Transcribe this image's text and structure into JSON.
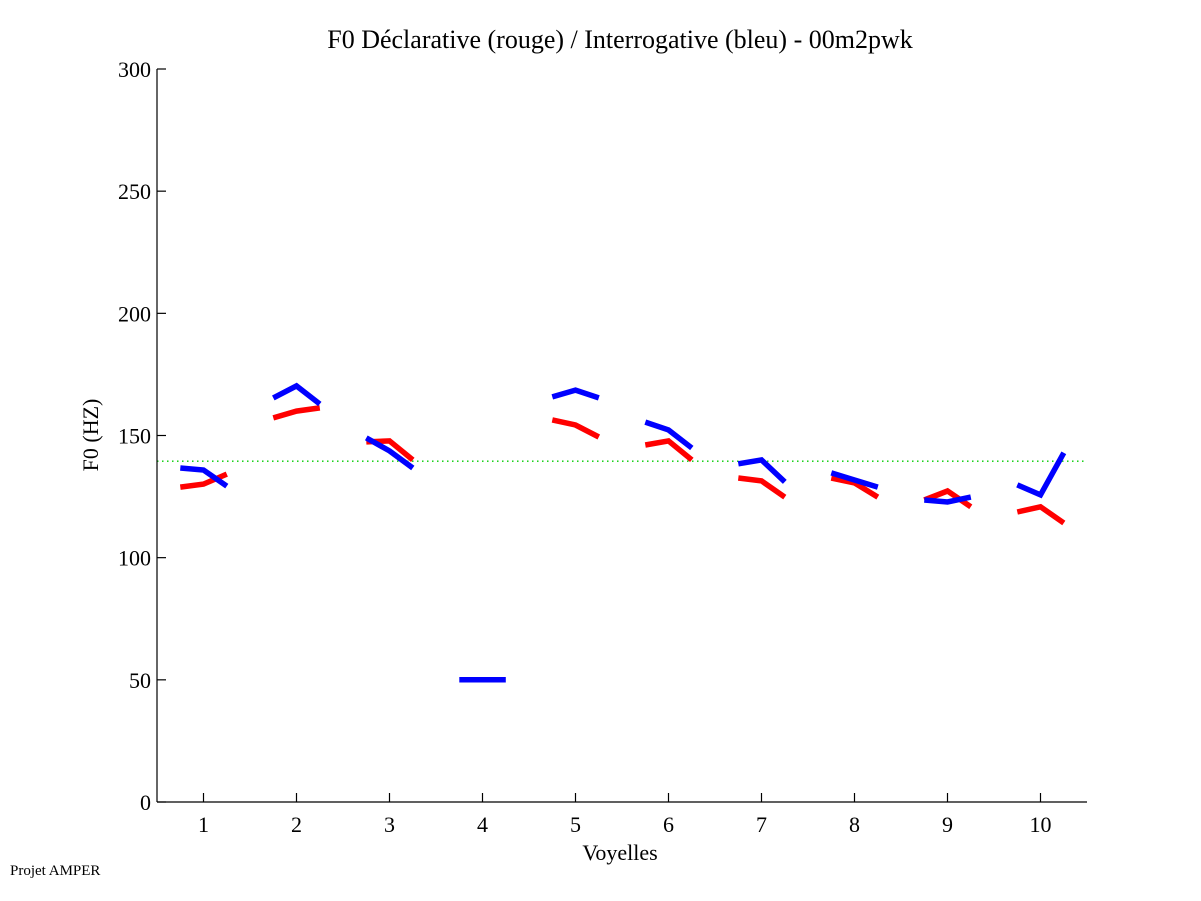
{
  "chart_data": {
    "type": "line",
    "title": "F0 Déclarative (rouge) / Interrogative (bleu) - 00m2pwk",
    "xlabel": "Voyelles",
    "ylabel": "F0 (HZ)",
    "xlim": [
      0.5,
      10.5
    ],
    "ylim": [
      0,
      300
    ],
    "xticks": [
      1,
      2,
      3,
      4,
      5,
      6,
      7,
      8,
      9,
      10
    ],
    "xtick_labels": [
      "1",
      "2",
      "3",
      "4",
      "5",
      "6",
      "7",
      "8",
      "9",
      "10"
    ],
    "yticks": [
      0,
      50,
      100,
      150,
      200,
      250,
      300
    ],
    "ytick_labels": [
      "0",
      "50",
      "100",
      "150",
      "200",
      "250",
      "300"
    ],
    "grid": false,
    "segment_offsets": [
      -0.25,
      0,
      0.25
    ],
    "reference_line": {
      "value": 139.5,
      "color": "#00cc00",
      "style": "dotted"
    },
    "series": [
      {
        "name": "Déclarative (rouge)",
        "color": "#ff0000",
        "segments": [
          {
            "vowel": 1,
            "values": [
              128.9,
              130.1,
              134.2
            ]
          },
          {
            "vowel": 2,
            "values": [
              157.2,
              160.0,
              161.3
            ]
          },
          {
            "vowel": 3,
            "values": [
              147.4,
              147.8,
              140.0
            ]
          },
          {
            "vowel": 5,
            "values": [
              156.4,
              154.3,
              149.4
            ]
          },
          {
            "vowel": 6,
            "values": [
              146.1,
              147.8,
              140.0
            ]
          },
          {
            "vowel": 7,
            "values": [
              132.6,
              131.4,
              124.8
            ]
          },
          {
            "vowel": 8,
            "values": [
              132.6,
              130.6,
              124.8
            ]
          },
          {
            "vowel": 9,
            "values": [
              123.6,
              127.3,
              120.8
            ]
          },
          {
            "vowel": 10,
            "values": [
              118.7,
              120.8,
              114.2
            ]
          }
        ]
      },
      {
        "name": "Interrogative (bleu)",
        "color": "#0000ff",
        "segments": [
          {
            "vowel": 1,
            "values": [
              136.7,
              135.9,
              129.3
            ]
          },
          {
            "vowel": 2,
            "values": [
              165.4,
              170.3,
              162.9
            ]
          },
          {
            "vowel": 3,
            "values": [
              149.0,
              143.7,
              136.7
            ]
          },
          {
            "vowel": 4,
            "values": [
              50.0,
              50.0,
              50.0
            ]
          },
          {
            "vowel": 5,
            "values": [
              165.8,
              168.6,
              165.4
            ]
          },
          {
            "vowel": 6,
            "values": [
              155.5,
              152.3,
              144.9
            ]
          },
          {
            "vowel": 7,
            "values": [
              138.4,
              140.0,
              131.0
            ]
          },
          {
            "vowel": 8,
            "values": [
              134.7,
              131.8,
              128.9
            ]
          },
          {
            "vowel": 9,
            "values": [
              123.6,
              122.8,
              124.8
            ]
          },
          {
            "vowel": 10,
            "values": [
              129.8,
              125.7,
              142.9
            ]
          }
        ]
      }
    ]
  },
  "footer": {
    "text": "Projet AMPER"
  }
}
